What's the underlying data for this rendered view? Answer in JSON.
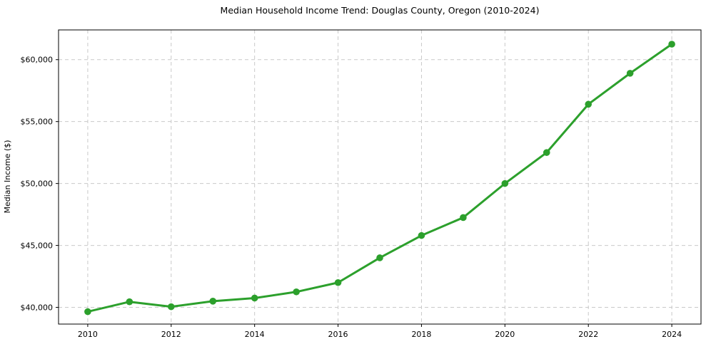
{
  "chart_data": {
    "type": "line",
    "title": "Median Household Income Trend: Douglas County, Oregon (2010-2024)",
    "xlabel": "",
    "ylabel": "Median Income ($)",
    "series": [
      {
        "name": "Median household income",
        "x": [
          2010,
          2011,
          2012,
          2013,
          2014,
          2015,
          2016,
          2017,
          2018,
          2019,
          2020,
          2021,
          2022,
          2023,
          2024
        ],
        "values": [
          39650,
          40450,
          40050,
          40500,
          40750,
          41250,
          42000,
          44000,
          45800,
          47250,
          50000,
          52500,
          56400,
          58900,
          61250
        ]
      }
    ],
    "xlim": [
      2009.3,
      2024.7
    ],
    "ylim": [
      38650,
      62400
    ],
    "x_ticks": [
      2010,
      2012,
      2014,
      2016,
      2018,
      2020,
      2022,
      2024
    ],
    "x_tick_labels": [
      "2010",
      "2012",
      "2014",
      "2016",
      "2018",
      "2020",
      "2022",
      "2024"
    ],
    "y_ticks": [
      40000,
      45000,
      50000,
      55000,
      60000
    ],
    "y_tick_labels": [
      "$40,000",
      "$45,000",
      "$50,000",
      "$55,000",
      "$60,000"
    ],
    "grid": true,
    "legend": "none",
    "line_color": "#2ca02c",
    "marker": "circle",
    "marker_radius": 4.8,
    "line_width": 3,
    "background_color": "#ffffff",
    "text_color": "#000000"
  }
}
